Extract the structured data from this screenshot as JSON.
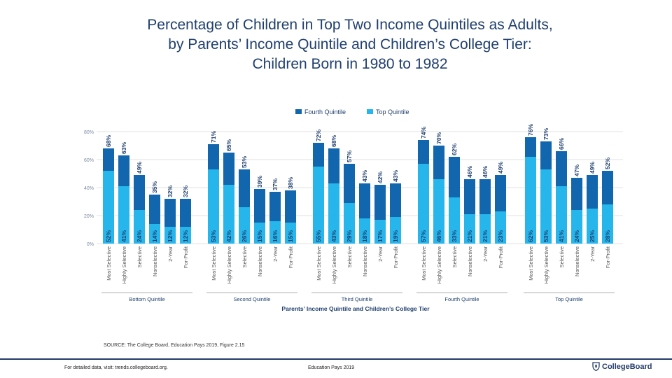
{
  "title_lines": [
    "Percentage of Children in Top Two Income Quintiles as Adults,",
    "by Parents’ Income Quintile and Children’s College Tier:",
    "Children Born in 1980 to 1982"
  ],
  "source": "SOURCE: The College Board, Education Pays 2019, Figure 2.15",
  "footer": {
    "left": "For detailed data, visit: trends.collegeboard.org.",
    "middle": "Education Pays 2019",
    "logo_text": "CollegeBoard",
    "logo_icon": "shield-acorn-icon"
  },
  "colors": {
    "fourth": "#1166ad",
    "top": "#26b6ec",
    "text": "#1f3f6e"
  },
  "chart_data": {
    "type": "bar",
    "stacked": true,
    "xlabel": "Parents’ Income Quintile and Children’s College Tier",
    "ylabel": "",
    "ylim": [
      0,
      80
    ],
    "yticks": [
      "0%",
      "20%",
      "40%",
      "60%",
      "80%"
    ],
    "grid": true,
    "legend_position": "top",
    "legend": [
      "Fourth Quintile",
      "Top Quintile"
    ],
    "groups": [
      {
        "name": "Bottom Quintile",
        "categories": [
          "Most Selective",
          "Highly Selective",
          "Selective",
          "Nonselective",
          "2-Year",
          "For-Profit"
        ],
        "top": [
          52,
          41,
          24,
          14,
          12,
          12
        ],
        "total": [
          68,
          63,
          49,
          35,
          32,
          32
        ],
        "top_labels": [
          "52%",
          "41%",
          "24%",
          "14%",
          "12%",
          "12%"
        ],
        "total_labels": [
          "68%",
          "63%",
          "49%",
          "35%",
          "32%",
          "32%"
        ]
      },
      {
        "name": "Second Quintile",
        "categories": [
          "Most Selective",
          "Highly Selective",
          "Selective",
          "Nonselective",
          "2-Year",
          "For-Profit"
        ],
        "top": [
          53,
          42,
          26,
          15,
          16,
          15
        ],
        "total": [
          71,
          65,
          53,
          39,
          37,
          38
        ],
        "top_labels": [
          "53%",
          "42%",
          "26%",
          "15%",
          "16%",
          "15%"
        ],
        "total_labels": [
          "71%",
          "65%",
          "53%",
          "39%",
          "37%",
          "38%"
        ]
      },
      {
        "name": "Third Quintile",
        "categories": [
          "Most Selective",
          "Highly Selective",
          "Selective",
          "Nonselective",
          "2-Year",
          "For-Profit"
        ],
        "top": [
          55,
          43,
          29,
          18,
          17,
          19
        ],
        "total": [
          72,
          68,
          57,
          43,
          42,
          43
        ],
        "top_labels": [
          "55%",
          "43%",
          "29%",
          "18%",
          "17%",
          "19%"
        ],
        "total_labels": [
          "72%",
          "68%",
          "57%",
          "43%",
          "42%",
          "43%"
        ]
      },
      {
        "name": "Fourth Quintile",
        "categories": [
          "Most Selective",
          "Highly Selective",
          "Selective",
          "Nonselective",
          "2-Year",
          "For-Profit"
        ],
        "top": [
          57,
          46,
          33,
          21,
          21,
          23
        ],
        "total": [
          74,
          70,
          62,
          46,
          46,
          49
        ],
        "top_labels": [
          "57%",
          "46%",
          "33%",
          "21%",
          "21%",
          "23%"
        ],
        "total_labels": [
          "74%",
          "70%",
          "62%",
          "46%",
          "46%",
          "49%"
        ]
      },
      {
        "name": "Top Quintile",
        "categories": [
          "Most Selective",
          "Highly Selective",
          "Selective",
          "Nonselective",
          "2-Year",
          "For-Profit"
        ],
        "top": [
          62,
          53,
          41,
          24,
          25,
          28
        ],
        "total": [
          76,
          73,
          66,
          47,
          49,
          52
        ],
        "top_labels": [
          "62%",
          "53%",
          "41%",
          "24%",
          "25%",
          "28%"
        ],
        "total_labels": [
          "76%",
          "73%",
          "66%",
          "47%",
          "49%",
          "52%"
        ]
      }
    ]
  }
}
